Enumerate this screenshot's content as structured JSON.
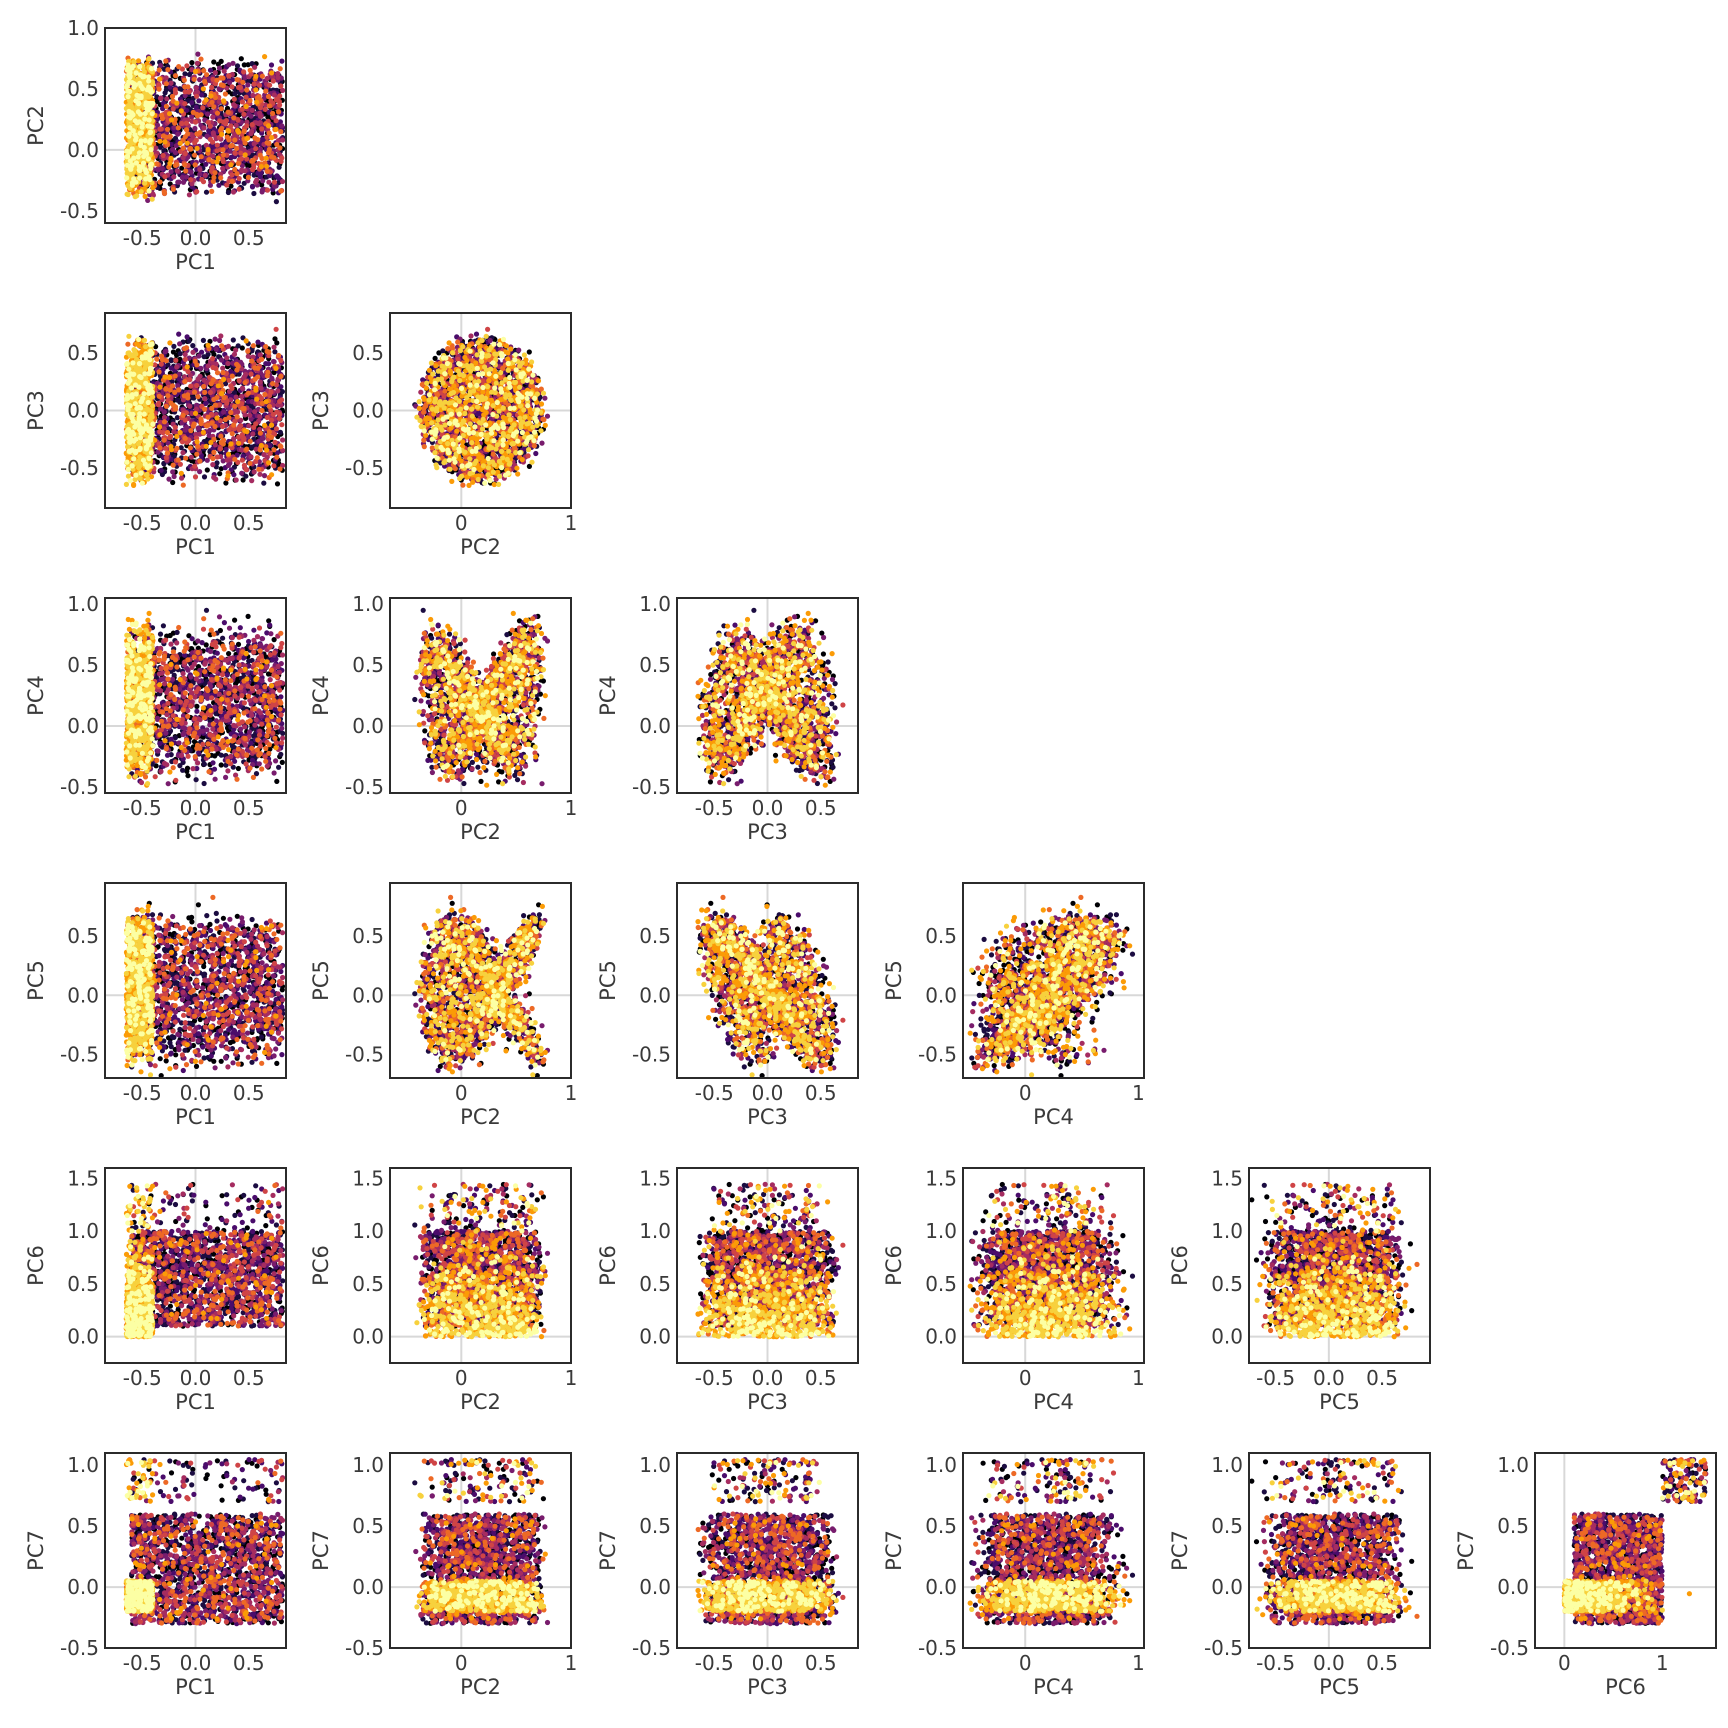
{
  "chart_data": {
    "type": "scatter",
    "layout": "lower-triangular pairwise scatter matrix",
    "colormap": [
      "#000004",
      "#1b0c41",
      "#4a0c6b",
      "#781c6d",
      "#a52c60",
      "#cf4446",
      "#ed6925",
      "#fb9b06",
      "#f7d13d",
      "#fcffa4"
    ],
    "grid": true,
    "variables": [
      "PC1",
      "PC2",
      "PC3",
      "PC4",
      "PC5",
      "PC6",
      "PC7"
    ],
    "axes": {
      "PC1": {
        "range": [
          -0.85,
          0.85
        ],
        "ticks": [
          "-0.5",
          "0.0",
          "0.5"
        ],
        "tick_values": [
          -0.5,
          0.0,
          0.5
        ]
      },
      "PC2": {
        "range": [
          -0.65,
          1.0
        ],
        "ticks": [
          "0",
          "1"
        ],
        "tick_values": [
          0,
          1
        ]
      },
      "PC3": {
        "range": [
          -0.85,
          0.85
        ],
        "ticks": [
          "-0.5",
          "0.0",
          "0.5"
        ],
        "tick_values": [
          -0.5,
          0.0,
          0.5
        ]
      },
      "PC4": {
        "range": [
          -0.55,
          1.05
        ],
        "ticks": [
          "0",
          "1"
        ],
        "tick_values": [
          0,
          1
        ]
      },
      "PC5": {
        "range": [
          -0.75,
          0.95
        ],
        "ticks": [
          "-0.5",
          "0.0",
          "0.5"
        ],
        "tick_values": [
          -0.5,
          0.0,
          0.5
        ]
      },
      "PC6": {
        "range": [
          -0.3,
          1.55
        ],
        "ticks": [
          "0",
          "1"
        ],
        "tick_values": [
          0,
          1
        ]
      }
    },
    "y_axes": {
      "PC2": {
        "range": [
          -0.6,
          1.0
        ],
        "ticks": [
          "-0.5",
          "0.0",
          "0.5",
          "1.0"
        ],
        "tick_values": [
          -0.5,
          0.0,
          0.5,
          1.0
        ]
      },
      "PC3": {
        "range": [
          -0.85,
          0.85
        ],
        "ticks": [
          "-0.5",
          "0.0",
          "0.5"
        ],
        "tick_values": [
          -0.5,
          0.0,
          0.5
        ]
      },
      "PC4": {
        "range": [
          -0.55,
          1.05
        ],
        "ticks": [
          "-0.5",
          "0.0",
          "0.5",
          "1.0"
        ],
        "tick_values": [
          -0.5,
          0.0,
          0.5,
          1.0
        ]
      },
      "PC5": {
        "range": [
          -0.7,
          0.95
        ],
        "ticks": [
          "-0.5",
          "0.0",
          "0.5"
        ],
        "tick_values": [
          -0.5,
          0.0,
          0.5
        ]
      },
      "PC6": {
        "range": [
          -0.25,
          1.6
        ],
        "ticks": [
          "0.0",
          "0.5",
          "1.0",
          "1.5"
        ],
        "tick_values": [
          0.0,
          0.5,
          1.0,
          1.5
        ]
      },
      "PC7": {
        "range": [
          -0.5,
          1.1
        ],
        "ticks": [
          "-0.5",
          "0.0",
          "0.5",
          "1.0"
        ],
        "tick_values": [
          -0.5,
          0.0,
          0.5,
          1.0
        ]
      }
    },
    "panels": [
      {
        "row": 0,
        "col": 0,
        "x": "PC1",
        "y": "PC2"
      },
      {
        "row": 1,
        "col": 0,
        "x": "PC1",
        "y": "PC3"
      },
      {
        "row": 1,
        "col": 1,
        "x": "PC2",
        "y": "PC3"
      },
      {
        "row": 2,
        "col": 0,
        "x": "PC1",
        "y": "PC4"
      },
      {
        "row": 2,
        "col": 1,
        "x": "PC2",
        "y": "PC4"
      },
      {
        "row": 2,
        "col": 2,
        "x": "PC3",
        "y": "PC4"
      },
      {
        "row": 3,
        "col": 0,
        "x": "PC1",
        "y": "PC5"
      },
      {
        "row": 3,
        "col": 1,
        "x": "PC2",
        "y": "PC5"
      },
      {
        "row": 3,
        "col": 2,
        "x": "PC3",
        "y": "PC5"
      },
      {
        "row": 3,
        "col": 3,
        "x": "PC4",
        "y": "PC5"
      },
      {
        "row": 4,
        "col": 0,
        "x": "PC1",
        "y": "PC6"
      },
      {
        "row": 4,
        "col": 1,
        "x": "PC2",
        "y": "PC6"
      },
      {
        "row": 4,
        "col": 2,
        "x": "PC3",
        "y": "PC6"
      },
      {
        "row": 4,
        "col": 3,
        "x": "PC4",
        "y": "PC6"
      },
      {
        "row": 4,
        "col": 4,
        "x": "PC5",
        "y": "PC6"
      },
      {
        "row": 5,
        "col": 0,
        "x": "PC1",
        "y": "PC7"
      },
      {
        "row": 5,
        "col": 1,
        "x": "PC2",
        "y": "PC7"
      },
      {
        "row": 5,
        "col": 2,
        "x": "PC3",
        "y": "PC7"
      },
      {
        "row": 5,
        "col": 3,
        "x": "PC4",
        "y": "PC7"
      },
      {
        "row": 5,
        "col": 4,
        "x": "PC5",
        "y": "PC7"
      },
      {
        "row": 5,
        "col": 5,
        "x": "PC6",
        "y": "PC7"
      }
    ]
  }
}
